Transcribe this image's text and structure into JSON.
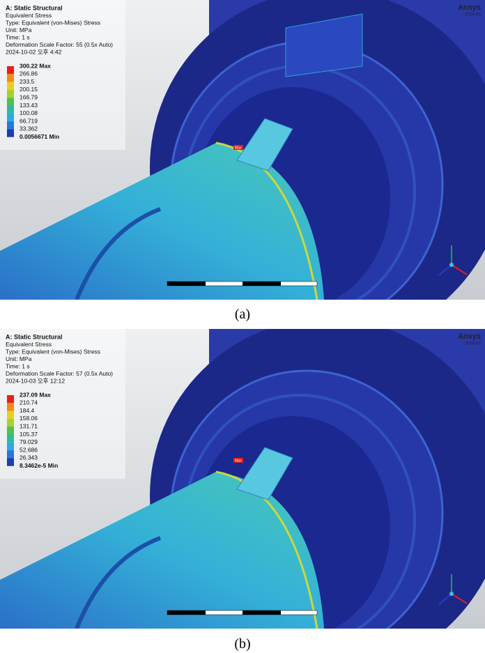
{
  "panels": [
    {
      "header": [
        "A: Static Structural",
        "Equivalent Stress",
        "Type: Equivalent (von-Mises) Stress",
        "Unit: MPa",
        "Time: 1 s",
        "Deformation Scale Factor: 55 (0.5x Auto)",
        "2024-10-02 오후 4:42"
      ],
      "legend": {
        "labels": [
          "300.22 Max",
          "266.86",
          "233.5",
          "200.15",
          "166.79",
          "133.43",
          "100.08",
          "66.719",
          "33.362",
          "0.0056671 Min"
        ],
        "colors": [
          "#e8201c",
          "#f08c1c",
          "#e8d020",
          "#a8d030",
          "#50c050",
          "#30b8a0",
          "#30a8e0",
          "#2878d8",
          "#1c3cb0"
        ]
      },
      "logo": "Ansys",
      "version": "2024 R1",
      "max_tag": "Max",
      "caption": "(a)"
    },
    {
      "header": [
        "A: Static Structural",
        "Equivalent Stress",
        "Type: Equivalent (von-Mises) Stress",
        "Unit: MPa",
        "Time: 1 s",
        "Deformation Scale Factor: 57 (0.5x Auto)",
        "2024-10-03 오후 12:12"
      ],
      "legend": {
        "labels": [
          "237.09 Max",
          "210.74",
          "184.4",
          "158.06",
          "131.71",
          "105.37",
          "79.029",
          "52.686",
          "26.343",
          "8.3462e-5 Min"
        ],
        "colors": [
          "#e8201c",
          "#f08c1c",
          "#e8d020",
          "#a8d030",
          "#50c050",
          "#30b8a0",
          "#30a8e0",
          "#2878d8",
          "#1c3cb0"
        ]
      },
      "logo": "Ansys",
      "version": "2024 R1",
      "max_tag": "Max",
      "caption": "(b)"
    }
  ]
}
